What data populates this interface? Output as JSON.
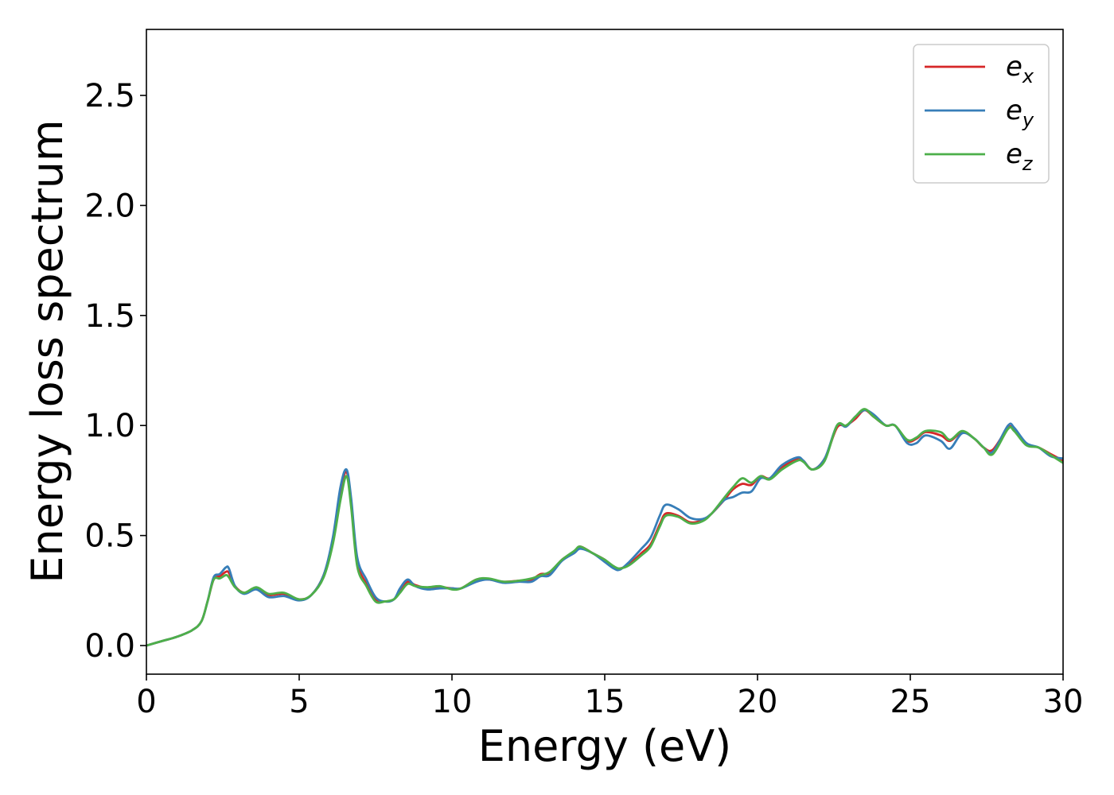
{
  "chart_data": {
    "type": "line",
    "title": "",
    "xlabel": "Energy (eV)",
    "ylabel": "Energy loss spectrum",
    "xlim": [
      0,
      30
    ],
    "ylim": [
      -0.13,
      2.8
    ],
    "xticks": [
      0,
      5,
      10,
      15,
      20,
      25,
      30
    ],
    "xtick_labels": [
      "0",
      "5",
      "10",
      "15",
      "20",
      "25",
      "30"
    ],
    "yticks": [
      0.0,
      0.5,
      1.0,
      1.5,
      2.0,
      2.5
    ],
    "ytick_labels": [
      "0.0",
      "0.5",
      "1.0",
      "1.5",
      "2.0",
      "2.5"
    ],
    "grid": false,
    "legend_position": "top-right",
    "series": [
      {
        "name": "e",
        "subscript": "x",
        "color": "#d62728",
        "points": [
          [
            0,
            0.0
          ],
          [
            0.5,
            0.02
          ],
          [
            1.0,
            0.04
          ],
          [
            1.5,
            0.07
          ],
          [
            1.8,
            0.11
          ],
          [
            2.0,
            0.2
          ],
          [
            2.2,
            0.3
          ],
          [
            2.4,
            0.315
          ],
          [
            2.6,
            0.335
          ],
          [
            2.7,
            0.33
          ],
          [
            2.9,
            0.27
          ],
          [
            3.2,
            0.24
          ],
          [
            3.6,
            0.26
          ],
          [
            4.0,
            0.23
          ],
          [
            4.5,
            0.235
          ],
          [
            5.0,
            0.21
          ],
          [
            5.4,
            0.23
          ],
          [
            5.8,
            0.32
          ],
          [
            6.1,
            0.48
          ],
          [
            6.35,
            0.7
          ],
          [
            6.55,
            0.79
          ],
          [
            6.7,
            0.65
          ],
          [
            6.9,
            0.38
          ],
          [
            7.2,
            0.28
          ],
          [
            7.5,
            0.21
          ],
          [
            7.8,
            0.2
          ],
          [
            8.1,
            0.21
          ],
          [
            8.3,
            0.25
          ],
          [
            8.55,
            0.29
          ],
          [
            8.8,
            0.275
          ],
          [
            9.2,
            0.26
          ],
          [
            9.6,
            0.265
          ],
          [
            10.0,
            0.26
          ],
          [
            10.3,
            0.26
          ],
          [
            10.8,
            0.3
          ],
          [
            11.2,
            0.3
          ],
          [
            11.7,
            0.29
          ],
          [
            12.2,
            0.295
          ],
          [
            12.6,
            0.3
          ],
          [
            12.9,
            0.325
          ],
          [
            13.2,
            0.33
          ],
          [
            13.6,
            0.39
          ],
          [
            14.0,
            0.425
          ],
          [
            14.2,
            0.45
          ],
          [
            14.6,
            0.42
          ],
          [
            15.0,
            0.39
          ],
          [
            15.3,
            0.355
          ],
          [
            15.5,
            0.35
          ],
          [
            15.8,
            0.37
          ],
          [
            16.2,
            0.42
          ],
          [
            16.5,
            0.46
          ],
          [
            16.8,
            0.55
          ],
          [
            17.0,
            0.6
          ],
          [
            17.4,
            0.59
          ],
          [
            17.8,
            0.56
          ],
          [
            18.2,
            0.57
          ],
          [
            18.5,
            0.6
          ],
          [
            18.9,
            0.66
          ],
          [
            19.2,
            0.71
          ],
          [
            19.5,
            0.735
          ],
          [
            19.8,
            0.73
          ],
          [
            20.1,
            0.77
          ],
          [
            20.4,
            0.76
          ],
          [
            20.8,
            0.81
          ],
          [
            21.3,
            0.85
          ],
          [
            21.5,
            0.84
          ],
          [
            21.8,
            0.8
          ],
          [
            22.2,
            0.85
          ],
          [
            22.6,
            0.99
          ],
          [
            22.9,
            1.0
          ],
          [
            23.2,
            1.03
          ],
          [
            23.5,
            1.07
          ],
          [
            23.8,
            1.04
          ],
          [
            24.2,
            1.0
          ],
          [
            24.5,
            1.0
          ],
          [
            24.9,
            0.93
          ],
          [
            25.2,
            0.94
          ],
          [
            25.5,
            0.97
          ],
          [
            26.0,
            0.955
          ],
          [
            26.3,
            0.93
          ],
          [
            26.7,
            0.97
          ],
          [
            27.1,
            0.94
          ],
          [
            27.4,
            0.9
          ],
          [
            27.7,
            0.89
          ],
          [
            28.2,
            0.99
          ],
          [
            28.4,
            0.98
          ],
          [
            28.8,
            0.915
          ],
          [
            29.2,
            0.9
          ],
          [
            29.6,
            0.87
          ],
          [
            30.0,
            0.84
          ]
        ]
      },
      {
        "name": "e",
        "subscript": "y",
        "color": "#377eb8",
        "points": [
          [
            0,
            0.0
          ],
          [
            0.5,
            0.02
          ],
          [
            1.0,
            0.04
          ],
          [
            1.5,
            0.07
          ],
          [
            1.8,
            0.11
          ],
          [
            2.0,
            0.2
          ],
          [
            2.2,
            0.31
          ],
          [
            2.4,
            0.325
          ],
          [
            2.6,
            0.355
          ],
          [
            2.7,
            0.35
          ],
          [
            2.9,
            0.27
          ],
          [
            3.2,
            0.235
          ],
          [
            3.6,
            0.255
          ],
          [
            4.0,
            0.22
          ],
          [
            4.5,
            0.225
          ],
          [
            5.0,
            0.205
          ],
          [
            5.4,
            0.23
          ],
          [
            5.8,
            0.32
          ],
          [
            6.1,
            0.49
          ],
          [
            6.35,
            0.72
          ],
          [
            6.55,
            0.8
          ],
          [
            6.7,
            0.67
          ],
          [
            6.9,
            0.4
          ],
          [
            7.2,
            0.3
          ],
          [
            7.5,
            0.22
          ],
          [
            7.8,
            0.2
          ],
          [
            8.1,
            0.21
          ],
          [
            8.3,
            0.26
          ],
          [
            8.55,
            0.3
          ],
          [
            8.8,
            0.27
          ],
          [
            9.2,
            0.255
          ],
          [
            9.6,
            0.26
          ],
          [
            10.0,
            0.26
          ],
          [
            10.3,
            0.26
          ],
          [
            10.8,
            0.29
          ],
          [
            11.2,
            0.3
          ],
          [
            11.7,
            0.285
          ],
          [
            12.2,
            0.29
          ],
          [
            12.6,
            0.29
          ],
          [
            12.9,
            0.315
          ],
          [
            13.2,
            0.32
          ],
          [
            13.6,
            0.385
          ],
          [
            14.0,
            0.42
          ],
          [
            14.2,
            0.44
          ],
          [
            14.6,
            0.42
          ],
          [
            15.0,
            0.38
          ],
          [
            15.3,
            0.35
          ],
          [
            15.5,
            0.345
          ],
          [
            15.8,
            0.38
          ],
          [
            16.2,
            0.44
          ],
          [
            16.5,
            0.49
          ],
          [
            16.8,
            0.59
          ],
          [
            17.0,
            0.64
          ],
          [
            17.4,
            0.62
          ],
          [
            17.8,
            0.58
          ],
          [
            18.2,
            0.575
          ],
          [
            18.5,
            0.6
          ],
          [
            18.9,
            0.66
          ],
          [
            19.2,
            0.675
          ],
          [
            19.5,
            0.695
          ],
          [
            19.8,
            0.7
          ],
          [
            20.1,
            0.76
          ],
          [
            20.4,
            0.76
          ],
          [
            20.8,
            0.82
          ],
          [
            21.3,
            0.855
          ],
          [
            21.5,
            0.84
          ],
          [
            21.8,
            0.8
          ],
          [
            22.2,
            0.85
          ],
          [
            22.6,
            1.0
          ],
          [
            22.9,
            0.995
          ],
          [
            23.2,
            1.04
          ],
          [
            23.5,
            1.07
          ],
          [
            23.8,
            1.05
          ],
          [
            24.2,
            1.0
          ],
          [
            24.5,
            1.0
          ],
          [
            24.9,
            0.92
          ],
          [
            25.2,
            0.92
          ],
          [
            25.5,
            0.955
          ],
          [
            26.0,
            0.93
          ],
          [
            26.3,
            0.895
          ],
          [
            26.7,
            0.965
          ],
          [
            27.1,
            0.94
          ],
          [
            27.4,
            0.9
          ],
          [
            27.7,
            0.88
          ],
          [
            28.2,
            1.0
          ],
          [
            28.4,
            0.99
          ],
          [
            28.8,
            0.92
          ],
          [
            29.2,
            0.9
          ],
          [
            29.6,
            0.86
          ],
          [
            30.0,
            0.85
          ]
        ]
      },
      {
        "name": "e",
        "subscript": "z",
        "color": "#4daf4a",
        "points": [
          [
            0,
            0.0
          ],
          [
            0.5,
            0.02
          ],
          [
            1.0,
            0.04
          ],
          [
            1.5,
            0.07
          ],
          [
            1.8,
            0.11
          ],
          [
            2.0,
            0.2
          ],
          [
            2.2,
            0.3
          ],
          [
            2.4,
            0.305
          ],
          [
            2.6,
            0.32
          ],
          [
            2.7,
            0.31
          ],
          [
            2.9,
            0.265
          ],
          [
            3.2,
            0.24
          ],
          [
            3.6,
            0.265
          ],
          [
            4.0,
            0.235
          ],
          [
            4.5,
            0.24
          ],
          [
            5.0,
            0.21
          ],
          [
            5.4,
            0.23
          ],
          [
            5.8,
            0.31
          ],
          [
            6.1,
            0.46
          ],
          [
            6.35,
            0.66
          ],
          [
            6.55,
            0.77
          ],
          [
            6.7,
            0.63
          ],
          [
            6.9,
            0.36
          ],
          [
            7.2,
            0.27
          ],
          [
            7.5,
            0.2
          ],
          [
            7.8,
            0.2
          ],
          [
            8.1,
            0.21
          ],
          [
            8.3,
            0.24
          ],
          [
            8.55,
            0.28
          ],
          [
            8.8,
            0.27
          ],
          [
            9.2,
            0.265
          ],
          [
            9.6,
            0.27
          ],
          [
            10.0,
            0.255
          ],
          [
            10.3,
            0.26
          ],
          [
            10.8,
            0.3
          ],
          [
            11.2,
            0.305
          ],
          [
            11.7,
            0.29
          ],
          [
            12.2,
            0.295
          ],
          [
            12.6,
            0.305
          ],
          [
            12.9,
            0.32
          ],
          [
            13.2,
            0.335
          ],
          [
            13.6,
            0.39
          ],
          [
            14.0,
            0.43
          ],
          [
            14.2,
            0.45
          ],
          [
            14.6,
            0.42
          ],
          [
            15.0,
            0.39
          ],
          [
            15.3,
            0.36
          ],
          [
            15.5,
            0.35
          ],
          [
            15.8,
            0.365
          ],
          [
            16.2,
            0.41
          ],
          [
            16.5,
            0.45
          ],
          [
            16.8,
            0.54
          ],
          [
            17.0,
            0.59
          ],
          [
            17.4,
            0.585
          ],
          [
            17.8,
            0.555
          ],
          [
            18.2,
            0.565
          ],
          [
            18.5,
            0.6
          ],
          [
            18.9,
            0.67
          ],
          [
            19.2,
            0.72
          ],
          [
            19.5,
            0.76
          ],
          [
            19.8,
            0.74
          ],
          [
            20.1,
            0.77
          ],
          [
            20.4,
            0.755
          ],
          [
            20.8,
            0.8
          ],
          [
            21.3,
            0.84
          ],
          [
            21.5,
            0.835
          ],
          [
            21.8,
            0.8
          ],
          [
            22.2,
            0.84
          ],
          [
            22.6,
            1.0
          ],
          [
            22.9,
            1.0
          ],
          [
            23.2,
            1.04
          ],
          [
            23.5,
            1.075
          ],
          [
            23.8,
            1.04
          ],
          [
            24.2,
            1.0
          ],
          [
            24.5,
            1.0
          ],
          [
            24.9,
            0.935
          ],
          [
            25.2,
            0.945
          ],
          [
            25.5,
            0.975
          ],
          [
            26.0,
            0.97
          ],
          [
            26.3,
            0.935
          ],
          [
            26.7,
            0.975
          ],
          [
            27.1,
            0.94
          ],
          [
            27.4,
            0.9
          ],
          [
            27.7,
            0.87
          ],
          [
            28.2,
            0.985
          ],
          [
            28.4,
            0.975
          ],
          [
            28.8,
            0.91
          ],
          [
            29.2,
            0.9
          ],
          [
            29.6,
            0.865
          ],
          [
            30.0,
            0.83
          ]
        ]
      }
    ]
  }
}
